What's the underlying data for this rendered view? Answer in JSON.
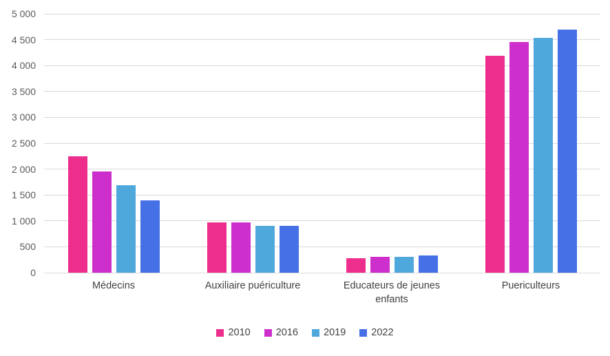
{
  "chart_data": {
    "type": "bar",
    "title": "",
    "xlabel": "",
    "ylabel": "",
    "ylim": [
      0,
      5000
    ],
    "grid": true,
    "legend_position": "bottom",
    "categories": [
      "Médecins",
      "Auxiliaire puériculture",
      "Educateurs de jeunes enfants",
      "Puericulteurs"
    ],
    "series": [
      {
        "name": "2010",
        "color": "#ED2E8C",
        "values": [
          2250,
          970,
          280,
          4190
        ]
      },
      {
        "name": "2016",
        "color": "#CC2FCC",
        "values": [
          1950,
          970,
          300,
          4450
        ]
      },
      {
        "name": "2019",
        "color": "#4FA8DC",
        "values": [
          1690,
          910,
          310,
          4530
        ]
      },
      {
        "name": "2022",
        "color": "#4570E6",
        "values": [
          1400,
          910,
          330,
          4690
        ]
      }
    ],
    "yticks": [
      {
        "value": 0,
        "label": "0"
      },
      {
        "value": 500,
        "label": "500"
      },
      {
        "value": 1000,
        "label": "1 000"
      },
      {
        "value": 1500,
        "label": "1 500"
      },
      {
        "value": 2000,
        "label": "2 000"
      },
      {
        "value": 2500,
        "label": "2 500"
      },
      {
        "value": 3000,
        "label": "3 000"
      },
      {
        "value": 3500,
        "label": "3 500"
      },
      {
        "value": 4000,
        "label": "4 000"
      },
      {
        "value": 4500,
        "label": "4 500"
      },
      {
        "value": 5000,
        "label": "5 000"
      }
    ]
  }
}
